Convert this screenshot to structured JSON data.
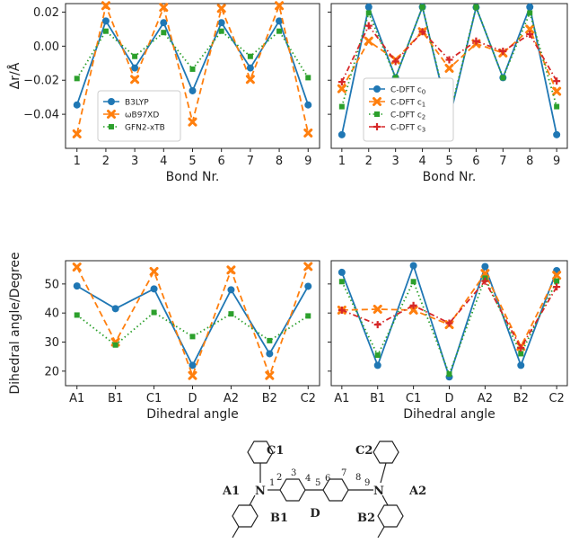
{
  "chart_data": [
    {
      "type": "line",
      "xlabel": "Bond Nr.",
      "ylabel": "Δr/Å",
      "categories": [
        "1",
        "2",
        "3",
        "4",
        "5",
        "6",
        "7",
        "8",
        "9"
      ],
      "ylim": [
        -0.06,
        0.025
      ],
      "yticks": [
        0.02,
        0.0,
        -0.02,
        -0.04
      ],
      "ytick_labels": [
        "0.02",
        "0.00",
        "−0.02",
        "−0.04"
      ],
      "legend": "lower-left",
      "series": [
        {
          "name": "B3LYP",
          "color": "#1f77b4",
          "style": "solid",
          "marker": "circle",
          "values": [
            -0.0345,
            0.0148,
            -0.0128,
            0.0138,
            -0.0262,
            0.0138,
            -0.0128,
            0.0148,
            -0.0345
          ]
        },
        {
          "name": "ωB97XD",
          "color": "#ff7f0e",
          "style": "dashed",
          "marker": "x",
          "values": [
            -0.0515,
            0.0238,
            -0.0195,
            0.0228,
            -0.0445,
            0.0222,
            -0.0195,
            0.0238,
            -0.051
          ]
        },
        {
          "name": "GFN2-xTB",
          "color": "#2ca02c",
          "style": "dotted",
          "marker": "square",
          "values": [
            -0.019,
            0.0088,
            -0.006,
            0.008,
            -0.0135,
            0.0088,
            -0.006,
            0.0088,
            -0.0185
          ]
        }
      ]
    },
    {
      "type": "line",
      "xlabel": "Bond Nr.",
      "ylabel": "",
      "categories": [
        "1",
        "2",
        "3",
        "4",
        "5",
        "6",
        "7",
        "8",
        "9"
      ],
      "ylim": [
        -0.06,
        0.025
      ],
      "legend": "lower-left",
      "series": [
        {
          "name": "C-DFT c",
          "sub": "0",
          "color": "#1f77b4",
          "style": "solid",
          "marker": "circle",
          "values": [
            -0.052,
            0.023,
            -0.0185,
            0.023,
            -0.043,
            0.0228,
            -0.0185,
            0.023,
            -0.052
          ]
        },
        {
          "name": "C-DFT c",
          "sub": "1",
          "color": "#ff7f0e",
          "style": "dashed",
          "marker": "x",
          "values": [
            -0.025,
            0.003,
            -0.008,
            0.0085,
            -0.013,
            0.0015,
            -0.004,
            0.01,
            -0.0265
          ]
        },
        {
          "name": "C-DFT c",
          "sub": "2",
          "color": "#2ca02c",
          "style": "dotted",
          "marker": "square",
          "values": [
            -0.0355,
            0.0195,
            -0.0185,
            0.023,
            -0.0415,
            0.023,
            -0.0185,
            0.0195,
            -0.0355
          ]
        },
        {
          "name": "C-DFT c",
          "sub": "3",
          "color": "#d62728",
          "style": "dashdot",
          "marker": "plus",
          "values": [
            -0.021,
            0.012,
            -0.009,
            0.0085,
            -0.008,
            0.003,
            -0.003,
            0.007,
            -0.0205
          ]
        }
      ]
    },
    {
      "type": "line",
      "xlabel": "Dihedral angle",
      "ylabel": "Dihedral angle/Degree",
      "categories": [
        "A1",
        "B1",
        "C1",
        "D",
        "A2",
        "B2",
        "C2"
      ],
      "ylim": [
        15,
        58
      ],
      "yticks": [
        20,
        30,
        40,
        50
      ],
      "ytick_labels": [
        "20",
        "30",
        "40",
        "50"
      ],
      "series": [
        {
          "name": "B3LYP",
          "color": "#1f77b4",
          "style": "solid",
          "marker": "circle",
          "values": [
            49.3,
            41.5,
            48.3,
            22.0,
            48.0,
            26.0,
            49.2
          ]
        },
        {
          "name": "ωB97XD",
          "color": "#ff7f0e",
          "style": "dashed",
          "marker": "x",
          "values": [
            55.8,
            30.0,
            54.3,
            18.5,
            54.8,
            18.5,
            56.0
          ]
        },
        {
          "name": "GFN2-xTB",
          "color": "#2ca02c",
          "style": "dotted",
          "marker": "square",
          "values": [
            39.3,
            29.0,
            40.2,
            31.9,
            39.7,
            30.5,
            39.0
          ]
        }
      ]
    },
    {
      "type": "line",
      "xlabel": "Dihedral angle",
      "ylabel": "",
      "categories": [
        "A1",
        "B1",
        "C1",
        "D",
        "A2",
        "B2",
        "C2"
      ],
      "ylim": [
        15,
        58
      ],
      "series": [
        {
          "name": "C-DFT c",
          "sub": "0",
          "color": "#1f77b4",
          "style": "solid",
          "marker": "circle",
          "values": [
            54.0,
            22.0,
            56.3,
            18.0,
            56.0,
            22.0,
            54.6
          ]
        },
        {
          "name": "C-DFT c",
          "sub": "1",
          "color": "#ff7f0e",
          "style": "dashed",
          "marker": "x",
          "values": [
            41.0,
            41.3,
            41.0,
            36.0,
            53.6,
            28.5,
            53.0
          ]
        },
        {
          "name": "C-DFT c",
          "sub": "2",
          "color": "#2ca02c",
          "style": "dotted",
          "marker": "square",
          "values": [
            50.8,
            25.5,
            50.8,
            19.0,
            52.0,
            26.0,
            51.0
          ]
        },
        {
          "name": "C-DFT c",
          "sub": "3",
          "color": "#d62728",
          "style": "dashdot",
          "marker": "plus",
          "values": [
            41.0,
            36.0,
            42.6,
            36.5,
            51.0,
            28.0,
            49.0
          ]
        }
      ]
    }
  ],
  "molecule": {
    "labels": {
      "A1": "A1",
      "A2": "A2",
      "B1": "B1",
      "B2": "B2",
      "C1": "C1",
      "C2": "C2",
      "D": "D",
      "N_left": "N",
      "N_right": "N",
      "bond_numbers": [
        "1",
        "2",
        "3",
        "4",
        "5",
        "6",
        "7",
        "8",
        "9"
      ]
    }
  }
}
